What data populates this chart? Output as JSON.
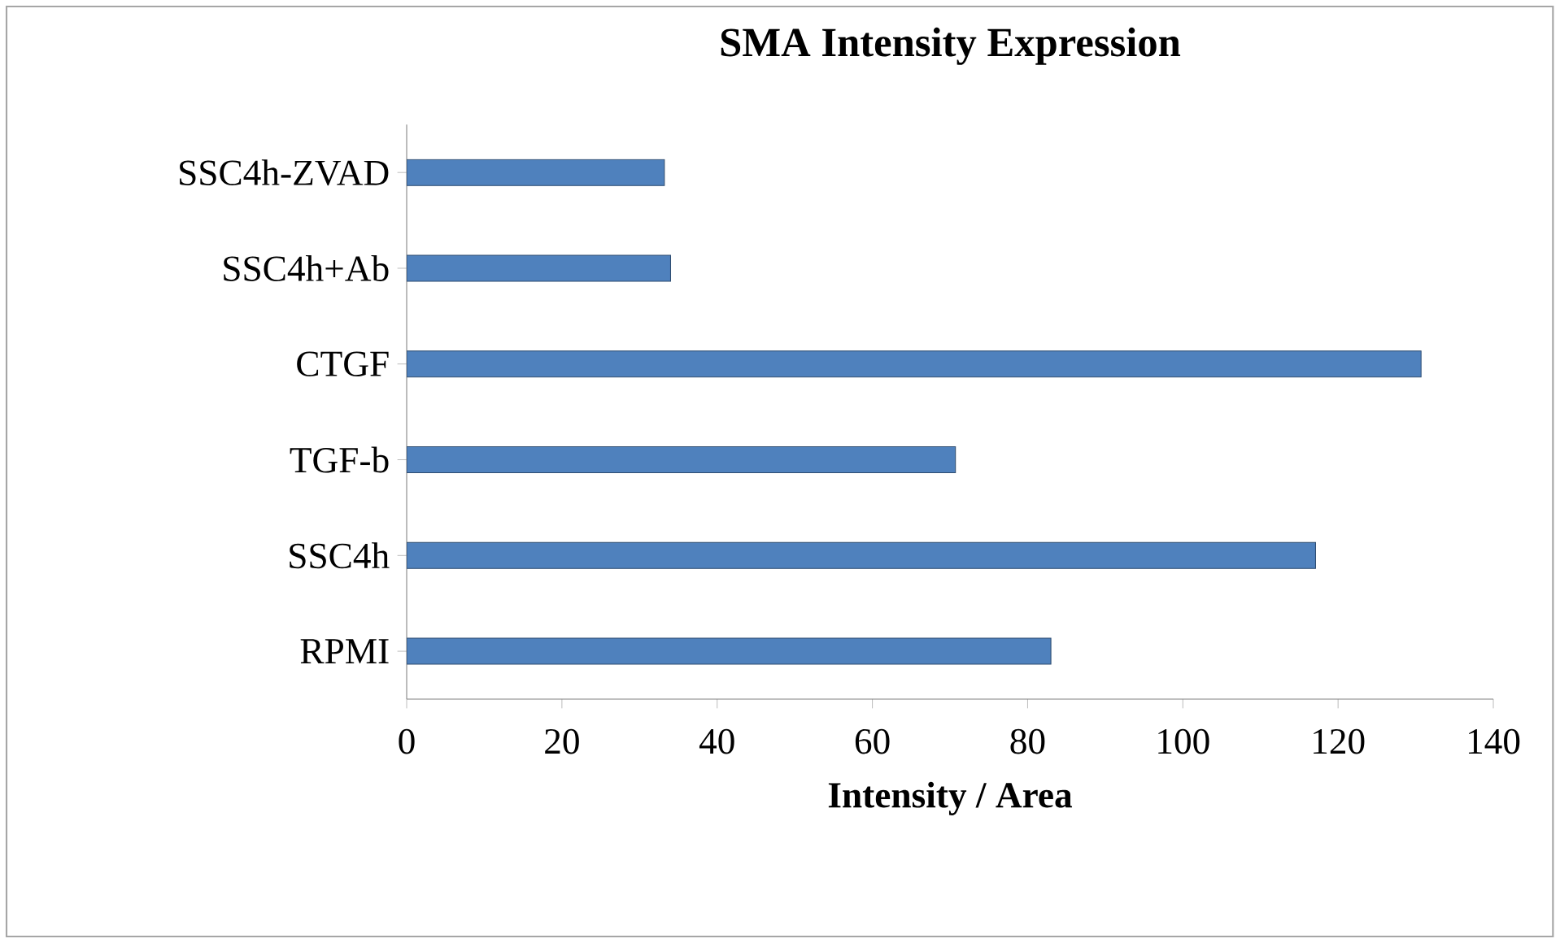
{
  "chart_data": {
    "type": "bar",
    "orientation": "horizontal",
    "title": "SMA Intensity Expression",
    "xlabel": "Intensity / Area",
    "categories": [
      "SSC4h-ZVAD",
      "SSC4h+Ab",
      "CTGF",
      "TGF-b",
      "SSC4h",
      "RPMI"
    ],
    "values": [
      33.2,
      34.0,
      130.7,
      70.7,
      117.1,
      83.0
    ],
    "color": "#4f81bd",
    "xlim": [
      0,
      140
    ],
    "xticks": [
      0,
      20,
      40,
      60,
      80,
      100,
      120,
      140
    ]
  }
}
